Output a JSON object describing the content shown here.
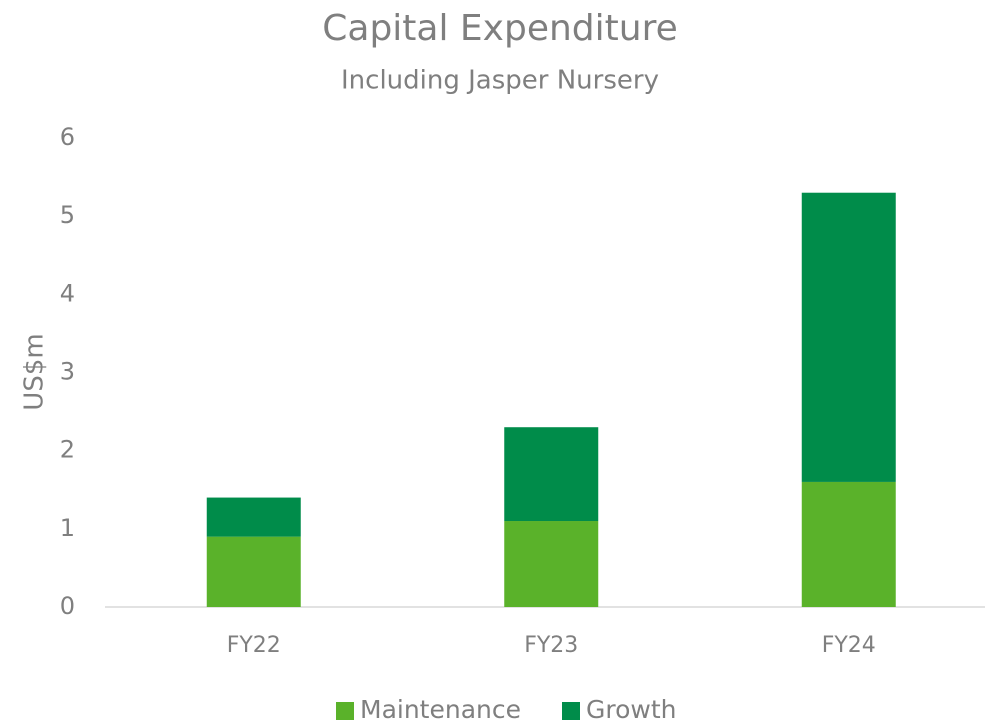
{
  "chart_data": {
    "type": "stacked_bar",
    "title": "Capital Expenditure",
    "subtitle": "Including Jasper Nursery",
    "y_label": "US$m",
    "categories": [
      "FY22",
      "FY23",
      "FY24"
    ],
    "series": [
      {
        "name": "Maintenance",
        "color": "#5ab22a",
        "values": [
          0.9,
          1.1,
          1.6
        ]
      },
      {
        "name": "Growth",
        "color": "#008c4a",
        "values": [
          0.5,
          1.2,
          3.7
        ]
      }
    ],
    "ylim": [
      0,
      6
    ],
    "yticks": [
      0,
      1,
      2,
      3,
      4,
      5,
      6
    ],
    "grid": false,
    "legend": "bottom"
  }
}
